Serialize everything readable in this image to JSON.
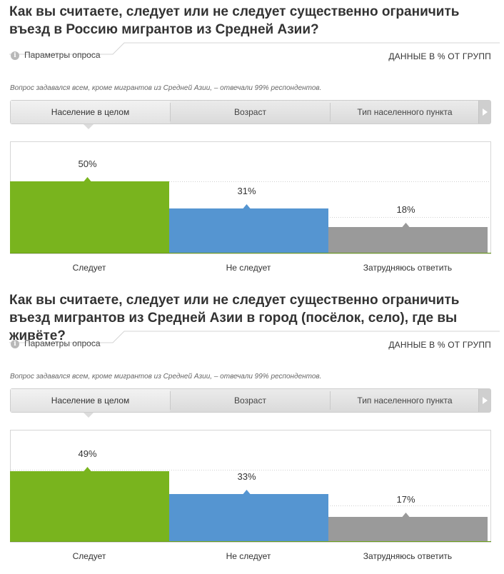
{
  "units_label": "ДАННЫЕ В % ОТ ГРУПП",
  "params_label": "Параметры опроса",
  "info_icon_glyph": "i",
  "colors": {
    "green": "#79b41e",
    "blue": "#5595d1",
    "gray": "#9a9a9a"
  },
  "blocks": [
    {
      "title": "Как вы считаете, следует или не следует существенно ограничить въезд в Россию мигрантов из Средней Азии?",
      "note": "Вопрос задавался всем, кроме мигрантов из Средней Азии, – отвечали 99% респондентов.",
      "tabs": [
        "Население в целом",
        "Возраст",
        "Тип населенного пункта"
      ]
    },
    {
      "title": "Как вы считаете, следует или не следует существенно ограничить въезд мигрантов из Средней Азии в город (посёлок, село), где вы живёте?",
      "note": "Вопрос задавался всем, кроме мигрантов из Средней Азии, – отвечали 99% респондентов.",
      "tabs": [
        "Население в целом",
        "Возраст",
        "Тип населенного пункта"
      ]
    }
  ],
  "chart_data": [
    {
      "type": "bar",
      "categories": [
        "Следует",
        "Не следует",
        "Затрудняюсь ответить"
      ],
      "values": [
        50,
        31,
        18
      ],
      "value_labels": [
        "50%",
        "31%",
        "18%"
      ],
      "colors": [
        "#79b41e",
        "#5595d1",
        "#9a9a9a"
      ],
      "ylim": [
        0,
        100
      ],
      "grid": true
    },
    {
      "type": "bar",
      "categories": [
        "Следует",
        "Не следует",
        "Затрудняюсь ответить"
      ],
      "values": [
        49,
        33,
        17
      ],
      "value_labels": [
        "49%",
        "33%",
        "17%"
      ],
      "colors": [
        "#79b41e",
        "#5595d1",
        "#9a9a9a"
      ],
      "ylim": [
        0,
        100
      ],
      "grid": true
    }
  ]
}
